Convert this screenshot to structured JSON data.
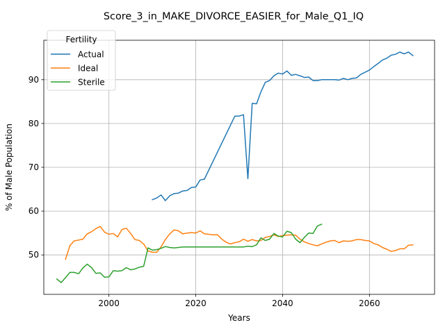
{
  "chart_data": {
    "type": "line",
    "title": "Score_3_in_MAKE_DIVORCE_EASIER_for_Male_Q1_IQ",
    "xlabel": "Years",
    "ylabel": "% of Male Population",
    "xlim": [
      1985,
      2075
    ],
    "ylim": [
      41,
      99
    ],
    "x_ticks": [
      2000,
      2020,
      2040,
      2060
    ],
    "y_ticks": [
      50,
      60,
      70,
      80,
      90
    ],
    "grid": true,
    "legend": {
      "title": "Fertility",
      "placement": "top-left"
    },
    "series": [
      {
        "name": "Actual",
        "color": "#1f77b4",
        "x": [
          2010,
          2011,
          2012,
          2013,
          2014,
          2015,
          2016,
          2017,
          2018,
          2019,
          2020,
          2021,
          2022,
          2029,
          2030,
          2031,
          2032,
          2033,
          2034,
          2035,
          2036,
          2037,
          2038,
          2039,
          2040,
          2041,
          2042,
          2043,
          2044,
          2045,
          2046,
          2047,
          2048,
          2049,
          2050,
          2051,
          2052,
          2053,
          2054,
          2055,
          2056,
          2057,
          2058,
          2059,
          2060,
          2061,
          2062,
          2063,
          2064,
          2065,
          2066,
          2067,
          2068,
          2069,
          2070
        ],
        "values": [
          62.6,
          63.0,
          63.7,
          62.4,
          63.5,
          64.0,
          64.1,
          64.6,
          64.7,
          65.4,
          65.5,
          67.1,
          67.3,
          81.7,
          81.7,
          82.0,
          67.4,
          84.6,
          84.5,
          87.2,
          89.4,
          89.8,
          90.9,
          91.5,
          91.3,
          92.0,
          91.0,
          91.2,
          90.9,
          90.5,
          90.6,
          89.8,
          89.8,
          90.0,
          90.0,
          90.0,
          90.0,
          89.9,
          90.3,
          90.0,
          90.3,
          90.4,
          91.2,
          91.7,
          92.2,
          93.0,
          93.7,
          94.5,
          94.9,
          95.6,
          95.8,
          96.3,
          95.9,
          96.3,
          95.5
        ]
      },
      {
        "name": "Ideal",
        "color": "#ff7f0e",
        "x": [
          1990,
          1991,
          1992,
          1993,
          1994,
          1995,
          1996,
          1997,
          1998,
          1999,
          2000,
          2001,
          2002,
          2003,
          2004,
          2005,
          2006,
          2007,
          2008,
          2009,
          2010,
          2011,
          2012,
          2013,
          2014,
          2015,
          2016,
          2017,
          2018,
          2019,
          2020,
          2021,
          2022,
          2023,
          2024,
          2025,
          2026,
          2027,
          2028,
          2029,
          2030,
          2031,
          2032,
          2033,
          2034,
          2035,
          2036,
          2037,
          2038,
          2039,
          2040,
          2041,
          2042,
          2043,
          2044,
          2045,
          2046,
          2047,
          2048,
          2049,
          2050,
          2051,
          2052,
          2053,
          2054,
          2055,
          2056,
          2057,
          2058,
          2059,
          2060,
          2061,
          2062,
          2063,
          2064,
          2065,
          2066,
          2067,
          2068,
          2069,
          2070
        ],
        "values": [
          49.0,
          52.1,
          53.2,
          53.4,
          53.6,
          54.8,
          55.3,
          56.0,
          56.5,
          55.2,
          54.7,
          54.9,
          54.1,
          55.8,
          56.1,
          54.9,
          53.5,
          53.3,
          52.5,
          50.9,
          50.6,
          50.6,
          51.8,
          53.5,
          54.8,
          55.7,
          55.5,
          54.8,
          55.0,
          55.1,
          55.0,
          55.5,
          54.8,
          54.7,
          54.6,
          54.6,
          53.6,
          52.9,
          52.5,
          52.8,
          53.0,
          53.6,
          53.1,
          53.5,
          53.2,
          53.3,
          54.0,
          54.2,
          54.6,
          54.2,
          54.4,
          54.5,
          54.6,
          54.5,
          53.6,
          53.0,
          52.6,
          52.3,
          52.1,
          52.5,
          52.9,
          53.2,
          53.3,
          52.8,
          53.2,
          53.1,
          53.2,
          53.5,
          53.5,
          53.3,
          53.2,
          52.6,
          52.3,
          51.7,
          51.3,
          50.8,
          51.0,
          51.4,
          51.4,
          52.2,
          52.3
        ]
      },
      {
        "name": "Sterile",
        "color": "#2ca02c",
        "x": [
          1988,
          1989,
          1990,
          1991,
          1992,
          1993,
          1994,
          1995,
          1996,
          1997,
          1998,
          1999,
          2000,
          2001,
          2002,
          2003,
          2004,
          2005,
          2006,
          2007,
          2008,
          2009,
          2010,
          2011,
          2012,
          2013,
          2014,
          2015,
          2016,
          2017,
          2018,
          2019,
          2020,
          2021,
          2022,
          2023,
          2024,
          2025,
          2026,
          2027,
          2028,
          2029,
          2030,
          2031,
          2032,
          2033,
          2034,
          2035,
          2036,
          2037,
          2038,
          2039,
          2040,
          2041,
          2042,
          2043,
          2044,
          2045,
          2046,
          2047,
          2048,
          2049
        ],
        "values": [
          44.5,
          43.7,
          44.8,
          46.0,
          46.0,
          45.7,
          47.0,
          47.9,
          47.1,
          45.8,
          45.9,
          44.9,
          45.0,
          46.4,
          46.3,
          46.4,
          47.1,
          46.6,
          46.8,
          47.2,
          47.4,
          51.6,
          51.1,
          51.2,
          51.5,
          51.9,
          51.7,
          51.6,
          51.7,
          51.8,
          51.8,
          51.8,
          51.8,
          51.8,
          51.8,
          51.8,
          51.8,
          51.8,
          51.8,
          51.8,
          51.8,
          51.8,
          51.8,
          51.8,
          52.0,
          51.9,
          52.3,
          53.9,
          53.3,
          53.6,
          54.9,
          54.3,
          54.1,
          55.4,
          55.1,
          53.6,
          52.8,
          54.0,
          55.0,
          54.9,
          56.6,
          57.0
        ]
      }
    ]
  }
}
